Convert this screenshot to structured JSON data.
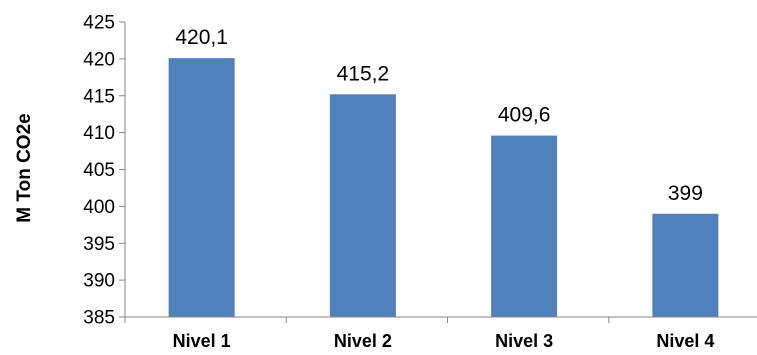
{
  "chart_data": {
    "type": "bar",
    "categories": [
      "Nivel 1",
      "Nivel 2",
      "Nivel 3",
      "Nivel 4"
    ],
    "values": [
      420.1,
      415.2,
      409.6,
      399
    ],
    "data_labels": [
      "420,1",
      "415,2",
      "409,6",
      "399"
    ],
    "ylabel": "M Ton CO2e",
    "ylim": [
      385,
      425
    ],
    "yticks": [
      385,
      390,
      395,
      400,
      405,
      410,
      415,
      420,
      425
    ],
    "grid": false,
    "legend": "none",
    "bar_color": "#4f81bd"
  }
}
